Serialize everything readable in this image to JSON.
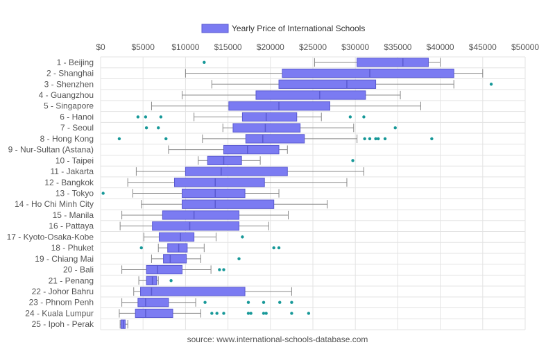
{
  "chart_data": {
    "type": "boxplot",
    "orientation": "horizontal",
    "legend": {
      "label": "Yearly Price of International Schools",
      "position": "top-center"
    },
    "x_ticks": [
      "$0",
      "$5000",
      "$10000",
      "$15000",
      "$20000",
      "$25000",
      "$30000",
      "$35000",
      "$40000",
      "$45000",
      "$50000"
    ],
    "xlim": [
      0,
      50000
    ],
    "grid": true,
    "colors": {
      "box_fill": "#7b7bf2",
      "box_stroke": "#5a5ad0",
      "whisker": "#888888",
      "outlier": "#169898",
      "grid": "#e3e3e3"
    },
    "source": "source: www.international-schools-database.com",
    "categories": [
      "1 - Beijing",
      "2 - Shanghai",
      "3 - Shenzhen",
      "4 - Guangzhou",
      "5 - Singapore",
      "6 - Hanoi",
      "7 - Seoul",
      "8 - Hong Kong",
      "9 - Nur-Sultan (Astana)",
      "10 - Taipei",
      "11 - Jakarta",
      "12 - Bangkok",
      "13 - Tokyo",
      "14 - Ho Chi Minh City",
      "15 - Manila",
      "16 - Pattaya",
      "17 - Kyoto-Osaka-Kobe",
      "18 - Phuket",
      "19 - Chiang Mai",
      "20 - Bali",
      "21 - Penang",
      "22 - Johor Bahru",
      "23 - Phnom Penh",
      "24 - Kuala Lumpur",
      "25 - Ipoh - Perak"
    ],
    "boxes": [
      {
        "min": 25200,
        "q1": 30200,
        "median": 35600,
        "q3": 38600,
        "max": 40000,
        "outliers": [
          12200
        ]
      },
      {
        "min": 10000,
        "q1": 21400,
        "median": 31700,
        "q3": 41600,
        "max": 45000,
        "outliers": []
      },
      {
        "min": 13100,
        "q1": 21000,
        "median": 29000,
        "q3": 32400,
        "max": 41600,
        "outliers": [
          46000
        ]
      },
      {
        "min": 9600,
        "q1": 18300,
        "median": 25800,
        "q3": 31200,
        "max": 35300,
        "outliers": []
      },
      {
        "min": 6000,
        "q1": 15100,
        "median": 21000,
        "q3": 27000,
        "max": 37700,
        "outliers": []
      },
      {
        "min": 11000,
        "q1": 16700,
        "median": 19500,
        "q3": 23100,
        "max": 26000,
        "outliers": [
          4400,
          5300,
          7100,
          29400,
          31000
        ]
      },
      {
        "min": 14400,
        "q1": 15600,
        "median": 19400,
        "q3": 23500,
        "max": 29800,
        "outliers": [
          5400,
          6800,
          34700
        ]
      },
      {
        "min": 12000,
        "q1": 17100,
        "median": 19100,
        "q3": 24000,
        "max": 30200,
        "outliers": [
          2200,
          7700,
          31100,
          31700,
          32400,
          32700,
          33500,
          39000
        ]
      },
      {
        "min": 8000,
        "q1": 14500,
        "median": 17300,
        "q3": 21000,
        "max": 22000,
        "outliers": []
      },
      {
        "min": 11500,
        "q1": 12600,
        "median": 14500,
        "q3": 16600,
        "max": 18800,
        "outliers": [
          29700
        ]
      },
      {
        "min": 4200,
        "q1": 10000,
        "median": 14200,
        "q3": 22000,
        "max": 31000,
        "outliers": []
      },
      {
        "min": 3200,
        "q1": 8700,
        "median": 13500,
        "q3": 19300,
        "max": 29000,
        "outliers": []
      },
      {
        "min": 3800,
        "q1": 9600,
        "median": 13500,
        "q3": 17000,
        "max": 21000,
        "outliers": [
          300
        ]
      },
      {
        "min": 4800,
        "q1": 9600,
        "median": 13500,
        "q3": 20400,
        "max": 26700,
        "outliers": []
      },
      {
        "min": 2500,
        "q1": 7300,
        "median": 11000,
        "q3": 16300,
        "max": 22100,
        "outliers": []
      },
      {
        "min": 2300,
        "q1": 6100,
        "median": 10500,
        "q3": 16300,
        "max": 19800,
        "outliers": []
      },
      {
        "min": 5100,
        "q1": 6900,
        "median": 9400,
        "q3": 11000,
        "max": 13600,
        "outliers": [
          16700
        ]
      },
      {
        "min": 6800,
        "q1": 7900,
        "median": 9200,
        "q3": 10200,
        "max": 12200,
        "outliers": [
          4800,
          20400,
          21000
        ]
      },
      {
        "min": 6000,
        "q1": 7400,
        "median": 8200,
        "q3": 10100,
        "max": 11800,
        "outliers": [
          16300
        ]
      },
      {
        "min": 2500,
        "q1": 5400,
        "median": 6700,
        "q3": 9600,
        "max": 13000,
        "outliers": [
          14000,
          14500
        ]
      },
      {
        "min": 4500,
        "q1": 5400,
        "median": 6100,
        "q3": 6600,
        "max": 6800,
        "outliers": [
          8300
        ]
      },
      {
        "min": 3900,
        "q1": 4700,
        "median": 6000,
        "q3": 17000,
        "max": 22500,
        "outliers": []
      },
      {
        "min": 2500,
        "q1": 4400,
        "median": 5300,
        "q3": 8000,
        "max": 11200,
        "outliers": [
          12300,
          17400,
          19200,
          21100,
          22500
        ]
      },
      {
        "min": 2200,
        "q1": 4100,
        "median": 5300,
        "q3": 8500,
        "max": 11800,
        "outliers": [
          13100,
          13700,
          14500,
          17400,
          17700,
          19200,
          19500,
          22500,
          24500
        ]
      },
      {
        "min": 2300,
        "q1": 2400,
        "median": 2700,
        "q3": 2900,
        "max": 3200,
        "outliers": []
      }
    ]
  }
}
